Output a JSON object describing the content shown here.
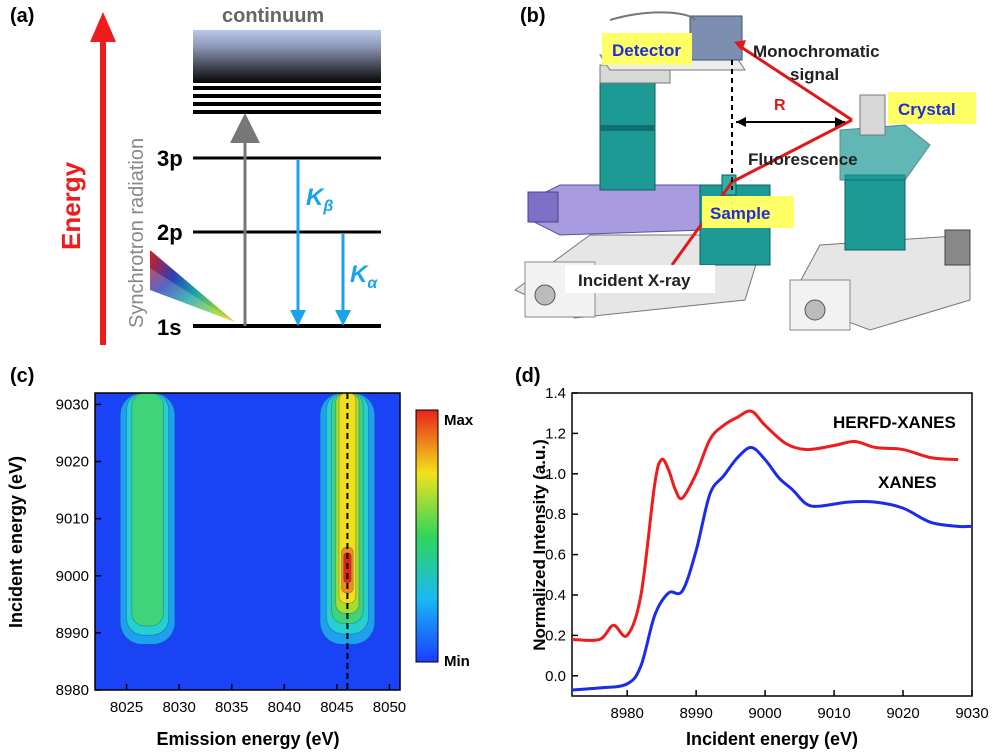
{
  "colors": {
    "energy_arrow": "#ee1c1c",
    "k_lines": "#1aa3e8",
    "herfd": "#ee1c1c",
    "xanes": "#1a2ce8",
    "label_box": "#ffff66",
    "label_text": "#1f2fd6",
    "machine_teal": "#1d9a96",
    "machine_purple": "#a89be0"
  },
  "panel_a": {
    "tag": "(a)",
    "energy_label": "Energy",
    "synchrotron_label": "Synchrotron radiation",
    "continuum_label": "continuum",
    "levels": [
      "3p",
      "2p",
      "1s"
    ],
    "k_beta": "K",
    "k_beta_sub": "β",
    "k_alpha": "K",
    "k_alpha_sub": "α"
  },
  "panel_b": {
    "tag": "(b)",
    "detector": "Detector",
    "mono_line1": "Monochromatic",
    "mono_line2": "signal",
    "r_label": "R",
    "crystal": "Crystal",
    "fluorescence": "Fluorescence",
    "sample": "Sample",
    "incident": "Incident X-ray"
  },
  "panel_c": {
    "tag": "(c)",
    "xlabel": "Emission energy (eV)",
    "ylabel": "Incident energy (eV)",
    "xticks": [
      "8025",
      "8030",
      "8035",
      "8040",
      "8045",
      "8050"
    ],
    "yticks": [
      "9030",
      "9020",
      "9010",
      "9000",
      "8990",
      "8980"
    ],
    "colorbar_max": "Max",
    "colorbar_min": "Min"
  },
  "panel_d": {
    "tag": "(d)",
    "xlabel": "Incident energy (eV)",
    "ylabel": "Normalized Intensity (a.u.)",
    "xticks": [
      "8980",
      "8990",
      "9000",
      "9010",
      "9020",
      "9030"
    ],
    "yticks": [
      "1.4",
      "1.2",
      "1.0",
      "0.8",
      "0.6",
      "0.4",
      "0.2",
      "0.0"
    ],
    "series_herfd": "HERFD-XANES",
    "series_xanes": "XANES"
  },
  "chart_data": [
    {
      "type": "heatmap",
      "xlabel": "Emission energy (eV)",
      "ylabel": "Incident energy (eV)",
      "xlim": [
        8022,
        8051
      ],
      "ylim": [
        8980,
        9032
      ],
      "colorbar": [
        "Min",
        "Max"
      ],
      "peaks": [
        {
          "emission": 8027,
          "incident_range": [
            8988,
            9032
          ],
          "max_incident": 9000
        },
        {
          "emission": 8046,
          "incident_range": [
            8988,
            9032
          ],
          "max_incident": 9002
        }
      ],
      "dashed_line_x": 8046
    },
    {
      "type": "line",
      "xlabel": "Incident energy (eV)",
      "ylabel": "Normalized Intensity (a.u.)",
      "xlim": [
        8972,
        9030
      ],
      "ylim": [
        -0.1,
        1.4
      ],
      "series": [
        {
          "name": "HERFD-XANES",
          "x": [
            8972,
            8976,
            8978,
            8980,
            8982,
            8984,
            8985,
            8986,
            8987,
            8988,
            8990,
            8992,
            8994,
            8996,
            8998,
            9000,
            9003,
            9006,
            9010,
            9013,
            9016,
            9020,
            9024,
            9028
          ],
          "y": [
            0.18,
            0.18,
            0.25,
            0.2,
            0.4,
            0.95,
            1.07,
            1.02,
            0.92,
            0.88,
            1.0,
            1.17,
            1.24,
            1.28,
            1.31,
            1.24,
            1.15,
            1.12,
            1.14,
            1.16,
            1.13,
            1.12,
            1.08,
            1.07
          ]
        },
        {
          "name": "XANES",
          "x": [
            8972,
            8976,
            8980,
            8982,
            8984,
            8986,
            8988,
            8990,
            8992,
            8994,
            8996,
            8998,
            9000,
            9002,
            9004,
            9006,
            9008,
            9012,
            9016,
            9020,
            9024,
            9028,
            9030
          ],
          "y": [
            -0.07,
            -0.06,
            -0.04,
            0.05,
            0.3,
            0.41,
            0.42,
            0.62,
            0.9,
            0.99,
            1.08,
            1.13,
            1.07,
            0.98,
            0.92,
            0.85,
            0.84,
            0.86,
            0.86,
            0.83,
            0.76,
            0.74,
            0.74
          ]
        }
      ]
    }
  ]
}
